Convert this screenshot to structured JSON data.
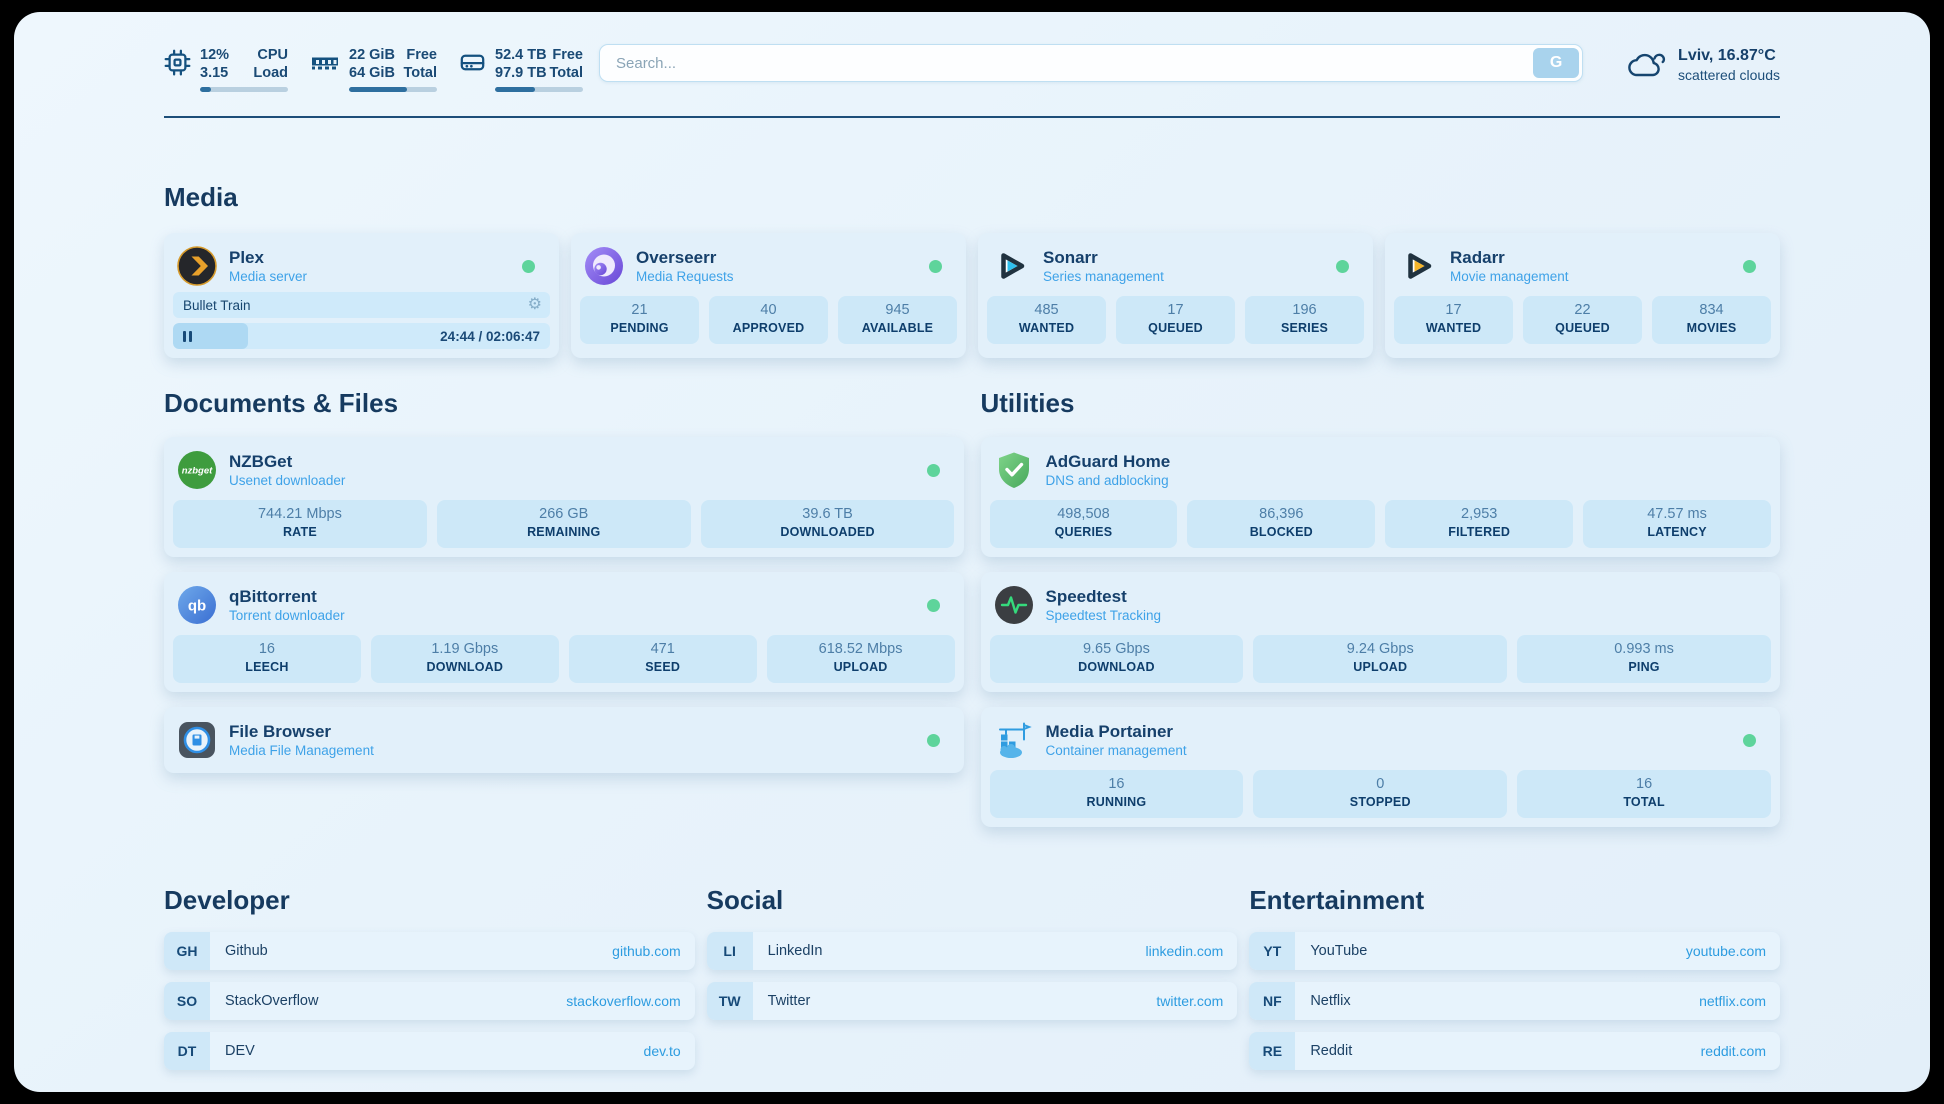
{
  "topbar": {
    "metrics": [
      {
        "value_top": "12%",
        "value_bottom": "3.15",
        "label_top": "CPU",
        "label_bottom": "Load",
        "progress_pct": 12
      },
      {
        "value_top": "22 GiB",
        "value_bottom": "64 GiB",
        "label_top": "Free",
        "label_bottom": "Total",
        "progress_pct": 66
      },
      {
        "value_top": "52.4 TB",
        "value_bottom": "97.9 TB",
        "label_top": "Free",
        "label_bottom": "Total",
        "progress_pct": 46
      }
    ],
    "search": {
      "placeholder": "Search...",
      "engine_button": "G"
    },
    "weather": {
      "headline": "Lviv, 16.87°C",
      "condition": "scattered clouds"
    }
  },
  "sections": {
    "media": "Media",
    "documents": "Documents & Files",
    "utilities": "Utilities",
    "developer": "Developer",
    "social": "Social",
    "entertainment": "Entertainment"
  },
  "apps": {
    "plex": {
      "name": "Plex",
      "subtitle": "Media server",
      "status": "online",
      "now_playing": {
        "title": "Bullet Train",
        "time_display": "24:44 / 02:06:47",
        "progress_pct": 20
      }
    },
    "overseerr": {
      "name": "Overseerr",
      "subtitle": "Media Requests",
      "status": "online",
      "stats": [
        {
          "value": "21",
          "label": "PENDING"
        },
        {
          "value": "40",
          "label": "APPROVED"
        },
        {
          "value": "945",
          "label": "AVAILABLE"
        }
      ]
    },
    "sonarr": {
      "name": "Sonarr",
      "subtitle": "Series management",
      "status": "online",
      "stats": [
        {
          "value": "485",
          "label": "WANTED"
        },
        {
          "value": "17",
          "label": "QUEUED"
        },
        {
          "value": "196",
          "label": "SERIES"
        }
      ]
    },
    "radarr": {
      "name": "Radarr",
      "subtitle": "Movie management",
      "status": "online",
      "stats": [
        {
          "value": "17",
          "label": "WANTED"
        },
        {
          "value": "22",
          "label": "QUEUED"
        },
        {
          "value": "834",
          "label": "MOVIES"
        }
      ]
    },
    "nzbget": {
      "name": "NZBGet",
      "subtitle": "Usenet downloader",
      "status": "online",
      "stats": [
        {
          "value": "744.21 Mbps",
          "label": "RATE"
        },
        {
          "value": "266 GB",
          "label": "REMAINING"
        },
        {
          "value": "39.6 TB",
          "label": "DOWNLOADED"
        }
      ]
    },
    "qbittorrent": {
      "name": "qBittorrent",
      "subtitle": "Torrent downloader",
      "status": "online",
      "stats": [
        {
          "value": "16",
          "label": "LEECH"
        },
        {
          "value": "1.19 Gbps",
          "label": "DOWNLOAD"
        },
        {
          "value": "471",
          "label": "SEED"
        },
        {
          "value": "618.52 Mbps",
          "label": "UPLOAD"
        }
      ]
    },
    "filebrowser": {
      "name": "File Browser",
      "subtitle": "Media File Management",
      "status": "online"
    },
    "adguard": {
      "name": "AdGuard Home",
      "subtitle": "DNS and adblocking",
      "stats": [
        {
          "value": "498,508",
          "label": "QUERIES"
        },
        {
          "value": "86,396",
          "label": "BLOCKED"
        },
        {
          "value": "2,953",
          "label": "FILTERED"
        },
        {
          "value": "47.57 ms",
          "label": "LATENCY"
        }
      ]
    },
    "speedtest": {
      "name": "Speedtest",
      "subtitle": "Speedtest Tracking",
      "stats": [
        {
          "value": "9.65 Gbps",
          "label": "DOWNLOAD"
        },
        {
          "value": "9.24 Gbps",
          "label": "UPLOAD"
        },
        {
          "value": "0.993 ms",
          "label": "PING"
        }
      ]
    },
    "portainer": {
      "name": "Media Portainer",
      "subtitle": "Container management",
      "status": "online",
      "stats": [
        {
          "value": "16",
          "label": "RUNNING"
        },
        {
          "value": "0",
          "label": "STOPPED"
        },
        {
          "value": "16",
          "label": "TOTAL"
        }
      ]
    }
  },
  "bookmarks": {
    "developer": [
      {
        "abbr": "GH",
        "label": "Github",
        "url": "github.com"
      },
      {
        "abbr": "SO",
        "label": "StackOverflow",
        "url": "stackoverflow.com"
      },
      {
        "abbr": "DT",
        "label": "DEV",
        "url": "dev.to"
      }
    ],
    "social": [
      {
        "abbr": "LI",
        "label": "LinkedIn",
        "url": "linkedin.com"
      },
      {
        "abbr": "TW",
        "label": "Twitter",
        "url": "twitter.com"
      }
    ],
    "entertainment": [
      {
        "abbr": "YT",
        "label": "YouTube",
        "url": "youtube.com"
      },
      {
        "abbr": "NF",
        "label": "Netflix",
        "url": "netflix.com"
      },
      {
        "abbr": "RE",
        "label": "Reddit",
        "url": "reddit.com"
      }
    ]
  },
  "colors": {
    "accent_blue": "#2d9ce0",
    "status_online_green": "#5ed49b",
    "navy_text": "#16406b"
  }
}
